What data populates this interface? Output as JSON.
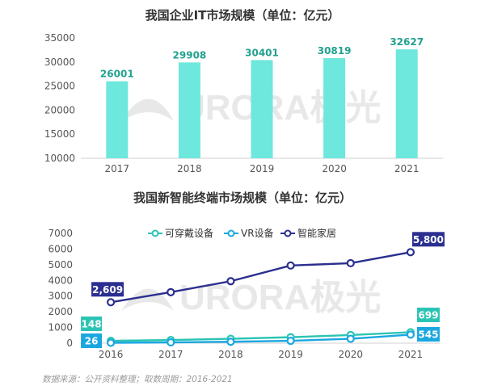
{
  "chart_data": [
    {
      "type": "bar",
      "title": "我国企业IT市场规模（单位：亿元）",
      "categories": [
        "2017",
        "2018",
        "2019",
        "2020",
        "2021"
      ],
      "values": [
        26001,
        29908,
        30401,
        30819,
        32627
      ],
      "ylim": [
        10000,
        35000
      ],
      "yticks": [
        10000,
        15000,
        20000,
        25000,
        30000,
        35000
      ],
      "grid": false,
      "colors": {
        "bar": "#6ee7dc",
        "label": "#23a08f"
      }
    },
    {
      "type": "line",
      "title": "我国新智能终端市场规模（单位：亿元）",
      "x": [
        "2016",
        "2017",
        "2018",
        "2019",
        "2020",
        "2021"
      ],
      "ylim": [
        0,
        7000
      ],
      "yticks": [
        0,
        1000,
        2000,
        3000,
        4000,
        5000,
        6000,
        7000
      ],
      "legend_position": "top",
      "grid": false,
      "series": [
        {
          "name": "可穿戴设备",
          "values": [
            148,
            200,
            280,
            380,
            520,
            699
          ],
          "color": "#2bc4b4",
          "labels": {
            "first": "148",
            "last": "699"
          }
        },
        {
          "name": "VR设备",
          "values": [
            26,
            50,
            90,
            150,
            280,
            545
          ],
          "color": "#1aa7e0",
          "labels": {
            "first": "26",
            "last": "545"
          }
        },
        {
          "name": "智能家居",
          "values": [
            2609,
            3250,
            3950,
            4950,
            5100,
            5800
          ],
          "color": "#2b2f8f",
          "labels": {
            "first": "2,609",
            "last": "5,800"
          }
        }
      ]
    }
  ],
  "watermark": {
    "text": "URORA极光"
  },
  "footer": "数据来源：公开资料整理；取数周期：2016-2021"
}
